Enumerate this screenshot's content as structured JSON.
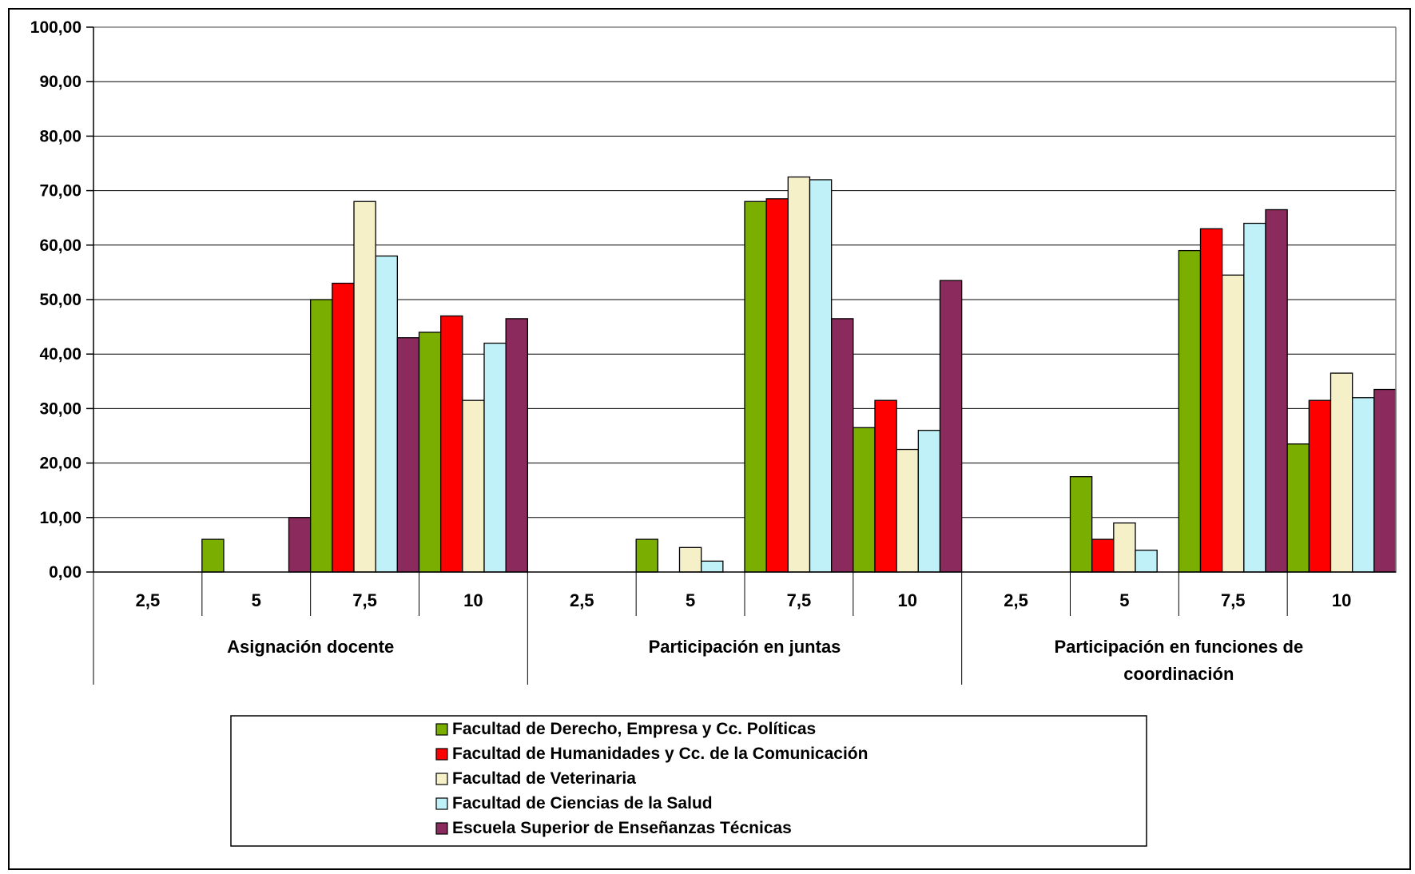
{
  "chart_data": {
    "type": "bar",
    "title": "",
    "xlabel": "",
    "ylabel": "",
    "ylim": [
      0,
      100
    ],
    "ytick_labels": [
      "0,00",
      "10,00",
      "20,00",
      "30,00",
      "40,00",
      "50,00",
      "60,00",
      "70,00",
      "80,00",
      "90,00",
      "100,00"
    ],
    "grid": true,
    "legend_position": "bottom",
    "groups": [
      {
        "label_lines": [
          "Asignación docente"
        ],
        "categories": [
          "2,5",
          "5",
          "7,5",
          "10"
        ],
        "series_values": [
          [
            0,
            6,
            50,
            44
          ],
          [
            0,
            0,
            53,
            47
          ],
          [
            0,
            0,
            68,
            31.5
          ],
          [
            0,
            0,
            58,
            42
          ],
          [
            0,
            10,
            43,
            46.5
          ]
        ]
      },
      {
        "label_lines": [
          "Participación en juntas"
        ],
        "categories": [
          "2,5",
          "5",
          "7,5",
          "10"
        ],
        "series_values": [
          [
            0,
            6,
            68,
            26.5
          ],
          [
            0,
            0,
            68.5,
            31.5
          ],
          [
            0,
            4.5,
            72.5,
            22.5
          ],
          [
            0,
            2,
            72,
            26
          ],
          [
            0,
            0,
            46.5,
            53.5
          ]
        ]
      },
      {
        "label_lines": [
          "Participación en funciones de",
          "coordinación"
        ],
        "categories": [
          "2,5",
          "5",
          "7,5",
          "10"
        ],
        "series_values": [
          [
            0,
            17.5,
            59,
            23.5
          ],
          [
            0,
            6,
            63,
            31.5
          ],
          [
            0,
            9,
            54.5,
            36.5
          ],
          [
            0,
            4,
            64,
            32
          ],
          [
            0,
            0,
            66.5,
            33.5
          ]
        ]
      }
    ],
    "series": [
      {
        "name": "Facultad de Derecho, Empresa y Cc. Políticas",
        "color": "#7aae00"
      },
      {
        "name": "Facultad de Humanidades y Cc. de la Comunicación",
        "color": "#ff0000"
      },
      {
        "name": "Facultad de Veterinaria",
        "color": "#f5f0c8"
      },
      {
        "name": "Facultad de Ciencias de la Salud",
        "color": "#c0f0f8"
      },
      {
        "name": "Escuela Superior de Enseñanzas Técnicas",
        "color": "#8b2a5c"
      }
    ]
  }
}
